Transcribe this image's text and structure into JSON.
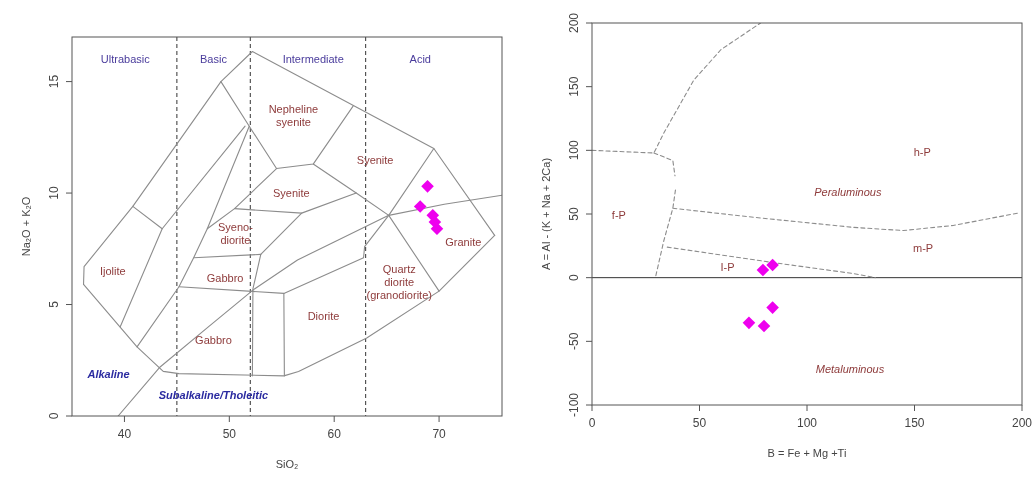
{
  "chart_data": [
    {
      "type": "scatter",
      "xlabel": "SiO₂",
      "ylabel": "Na₂O + K₂O",
      "xlim": [
        35,
        76
      ],
      "ylim": [
        0,
        17
      ],
      "xticks": [
        40,
        50,
        60,
        70
      ],
      "yticks": [
        0,
        5,
        10,
        15
      ],
      "ref_lines": [
        {
          "axis": "x",
          "value": 45,
          "color": "#333333",
          "line_style": "dashed"
        },
        {
          "axis": "x",
          "value": 52,
          "color": "#333333",
          "line_style": "dashed"
        },
        {
          "axis": "x",
          "value": 63,
          "color": "#333333",
          "line_style": "dashed"
        }
      ],
      "series": [
        {
          "type": "line",
          "color": "#8c8c8c",
          "line_style": "solid",
          "x": [
            36.1,
            36.15,
            40.8,
            49.2,
            52.2,
            69.5,
            75.3
          ],
          "values": [
            5.9,
            6.7,
            9.4,
            15.0,
            16.35,
            12.0,
            8.1
          ]
        },
        {
          "type": "line",
          "color": "#8c8c8c",
          "line_style": "solid",
          "x": [
            36.1,
            41.2,
            43.7,
            45.2,
            55.2,
            56.6,
            63.1,
            70.0,
            75.3
          ],
          "values": [
            5.9,
            3.1,
            2.0,
            1.9,
            1.8,
            2.0,
            3.5,
            5.6,
            8.1
          ]
        },
        {
          "type": "line",
          "color": "#8c8c8c",
          "line_style": "solid",
          "x": [
            40.8,
            43.6
          ],
          "values": [
            9.4,
            8.4
          ]
        },
        {
          "type": "line",
          "color": "#8c8c8c",
          "line_style": "solid",
          "x": [
            39.6,
            43.6,
            51.5
          ],
          "values": [
            4.0,
            8.4,
            13.0
          ]
        },
        {
          "type": "line",
          "color": "#8c8c8c",
          "line_style": "solid",
          "x": [
            41.2,
            45.2,
            46.6,
            47.9,
            51.9
          ],
          "values": [
            3.1,
            5.8,
            7.1,
            8.4,
            13.0
          ]
        },
        {
          "type": "line",
          "color": "#8c8c8c",
          "line_style": "solid",
          "x": [
            49.2,
            51.9,
            54.5,
            58.0,
            61.8
          ],
          "values": [
            15.0,
            13.0,
            11.1,
            11.3,
            13.9
          ]
        },
        {
          "type": "line",
          "color": "#8c8c8c",
          "line_style": "solid",
          "x": [
            58.0,
            62.1,
            65.2,
            69.5
          ],
          "values": [
            11.3,
            10.0,
            9.0,
            12.0
          ]
        },
        {
          "type": "line",
          "color": "#8c8c8c",
          "line_style": "solid",
          "x": [
            65.2,
            70.0
          ],
          "values": [
            9.0,
            5.6
          ]
        },
        {
          "type": "line",
          "color": "#8c8c8c",
          "line_style": "solid",
          "x": [
            39.4,
            43.4,
            48.0,
            52.4,
            56.5,
            60.0,
            65.2,
            70.5,
            76.0
          ],
          "values": [
            0.0,
            2.2,
            4.0,
            5.7,
            7.0,
            7.8,
            9.0,
            9.5,
            9.9
          ]
        },
        {
          "type": "line",
          "color": "#8c8c8c",
          "line_style": "solid",
          "x": [
            47.9,
            50.5,
            54.5
          ],
          "values": [
            8.4,
            9.3,
            11.1
          ]
        },
        {
          "type": "line",
          "color": "#8c8c8c",
          "line_style": "solid",
          "x": [
            50.5,
            56.9,
            62.1
          ],
          "values": [
            9.3,
            9.1,
            10.0
          ]
        },
        {
          "type": "line",
          "color": "#8c8c8c",
          "line_style": "solid",
          "x": [
            52.2,
            52.25,
            53.0,
            56.9
          ],
          "values": [
            1.8,
            5.7,
            7.25,
            9.1
          ]
        },
        {
          "type": "line",
          "color": "#8c8c8c",
          "line_style": "solid",
          "x": [
            46.6,
            53.0
          ],
          "values": [
            7.1,
            7.25
          ]
        },
        {
          "type": "line",
          "color": "#8c8c8c",
          "line_style": "solid",
          "x": [
            45.2,
            55.2,
            55.25
          ],
          "values": [
            5.8,
            5.5,
            1.8
          ]
        },
        {
          "type": "line",
          "color": "#8c8c8c",
          "line_style": "solid",
          "x": [
            55.2,
            62.8,
            62.9,
            65.2
          ],
          "values": [
            5.5,
            7.1,
            7.6,
            9.0
          ]
        },
        {
          "color": "#ee00ee",
          "marker": "diamond",
          "x": [
            68.9,
            68.2,
            69.4,
            69.6,
            69.8
          ],
          "values": [
            10.3,
            9.4,
            9.0,
            8.7,
            8.4
          ]
        }
      ],
      "annotations": [
        "Ultrabasic",
        "Basic",
        "Intermediate",
        "Acid",
        "Nepheline\nsyenite",
        "Syenite",
        "Syenite",
        "Syeno-\ndiorite",
        "Granite",
        "Ijolite",
        "Gabbro",
        "Gabbro",
        "Diorite",
        "Quartz\ndiorite\n(granodiorite)",
        "Alkaline",
        "Subalkaline/Tholeitic"
      ]
    },
    {
      "type": "scatter",
      "xlabel": "B = Fe + Mg +Ti",
      "ylabel": "A = Al - (K + Na + 2Ca)",
      "xlim": [
        0,
        200
      ],
      "ylim": [
        -100,
        200
      ],
      "xticks": [
        0,
        50,
        100,
        150,
        200
      ],
      "yticks": [
        -100,
        -50,
        0,
        50,
        100,
        150,
        200
      ],
      "ref_lines": [
        {
          "axis": "y",
          "value": 0,
          "color": "#333333",
          "line_style": "solid"
        }
      ],
      "series": [
        {
          "type": "line",
          "color": "#8c8c8c",
          "line_style": "dashed",
          "x": [
            0,
            28.8,
            33.4,
            47.3,
            59.9,
            78.4
          ],
          "values": [
            100,
            97.9,
            113.6,
            155,
            179,
            200
          ]
        },
        {
          "type": "line",
          "color": "#8c8c8c",
          "line_style": "dashed",
          "x": [
            28.8,
            37.6,
            38.6
          ],
          "values": [
            97.9,
            92,
            80
          ]
        },
        {
          "type": "line",
          "color": "#8c8c8c",
          "line_style": "dashed",
          "x": [
            29.7,
            33.4,
            37.6,
            39
          ],
          "values": [
            1.6,
            29,
            54.5,
            71
          ]
        },
        {
          "type": "line",
          "color": "#8c8c8c",
          "line_style": "dashed",
          "x": [
            37.6,
            75.2,
            121.6,
            144.8,
            168,
            199
          ],
          "values": [
            54.5,
            47.4,
            39.5,
            37,
            41,
            51
          ]
        },
        {
          "type": "line",
          "color": "#8c8c8c",
          "line_style": "dashed",
          "x": [
            35,
            84.5,
            121.6,
            131.8
          ],
          "values": [
            24,
            11.8,
            3.2,
            0
          ]
        },
        {
          "color": "#ee00ee",
          "marker": "diamond",
          "x": [
            79.5,
            84,
            84,
            73,
            80
          ],
          "values": [
            6,
            10,
            -23.5,
            -35.5,
            -38
          ]
        }
      ],
      "annotations": [
        "f-P",
        "Peraluminous",
        "h-P",
        "m-P",
        "I-P",
        "Metaluminous"
      ]
    }
  ]
}
